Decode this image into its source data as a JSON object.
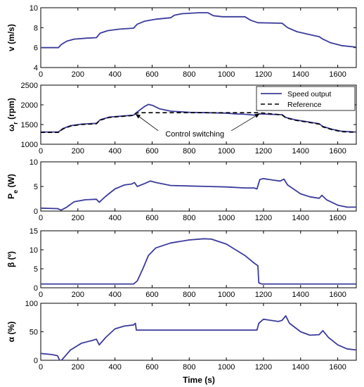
{
  "xlabel": "Time (s)",
  "colors": {
    "series": "#3b3b9c",
    "reference": "#000000",
    "axis": "#000000"
  },
  "chart_data": [
    {
      "type": "line",
      "ylabel": "v (m/s)",
      "xlim": [
        0,
        1700
      ],
      "ylim": [
        4,
        10
      ],
      "xticks": [
        0,
        200,
        400,
        600,
        800,
        1000,
        1200,
        1400,
        1600
      ],
      "yticks": [
        4,
        6,
        8,
        10
      ],
      "series": [
        {
          "values": [
            [
              0,
              6.0
            ],
            [
              95,
              6.0
            ],
            [
              110,
              6.3
            ],
            [
              140,
              6.65
            ],
            [
              180,
              6.85
            ],
            [
              250,
              6.95
            ],
            [
              300,
              7.0
            ],
            [
              320,
              7.45
            ],
            [
              360,
              7.7
            ],
            [
              420,
              7.85
            ],
            [
              500,
              7.95
            ],
            [
              520,
              8.35
            ],
            [
              560,
              8.65
            ],
            [
              620,
              8.85
            ],
            [
              700,
              9.0
            ],
            [
              720,
              9.25
            ],
            [
              760,
              9.4
            ],
            [
              850,
              9.5
            ],
            [
              900,
              9.5
            ],
            [
              930,
              9.2
            ],
            [
              980,
              9.1
            ],
            [
              1100,
              9.1
            ],
            [
              1130,
              8.75
            ],
            [
              1170,
              8.5
            ],
            [
              1300,
              8.45
            ],
            [
              1330,
              8.0
            ],
            [
              1380,
              7.6
            ],
            [
              1450,
              7.3
            ],
            [
              1500,
              7.1
            ],
            [
              1520,
              6.85
            ],
            [
              1560,
              6.5
            ],
            [
              1620,
              6.2
            ],
            [
              1700,
              6.05
            ]
          ]
        }
      ]
    },
    {
      "type": "line",
      "ylabel": "ω_r (rpm)",
      "xlim": [
        0,
        1700
      ],
      "ylim": [
        1000,
        2500
      ],
      "xticks": [
        0,
        200,
        400,
        600,
        800,
        1000,
        1200,
        1400,
        1600
      ],
      "yticks": [
        1000,
        1500,
        2000,
        2500
      ],
      "legend_position": "top-right",
      "series": [
        {
          "name": "Speed output",
          "values": [
            [
              0,
              1310
            ],
            [
              95,
              1310
            ],
            [
              120,
              1400
            ],
            [
              160,
              1470
            ],
            [
              220,
              1510
            ],
            [
              300,
              1530
            ],
            [
              320,
              1620
            ],
            [
              370,
              1690
            ],
            [
              450,
              1720
            ],
            [
              500,
              1740
            ],
            [
              520,
              1820
            ],
            [
              560,
              1960
            ],
            [
              580,
              2010
            ],
            [
              600,
              1990
            ],
            [
              640,
              1900
            ],
            [
              700,
              1840
            ],
            [
              800,
              1810
            ],
            [
              900,
              1800
            ],
            [
              1000,
              1790
            ],
            [
              1050,
              1770
            ],
            [
              1100,
              1760
            ],
            [
              1150,
              1740
            ],
            [
              1180,
              1770
            ],
            [
              1300,
              1750
            ],
            [
              1320,
              1680
            ],
            [
              1370,
              1620
            ],
            [
              1450,
              1560
            ],
            [
              1500,
              1520
            ],
            [
              1520,
              1450
            ],
            [
              1570,
              1380
            ],
            [
              1620,
              1330
            ],
            [
              1700,
              1310
            ]
          ]
        },
        {
          "name": "Reference",
          "style": "dashed",
          "values": [
            [
              0,
              1300
            ],
            [
              95,
              1300
            ],
            [
              120,
              1390
            ],
            [
              160,
              1460
            ],
            [
              220,
              1500
            ],
            [
              300,
              1520
            ],
            [
              320,
              1610
            ],
            [
              370,
              1680
            ],
            [
              450,
              1710
            ],
            [
              500,
              1730
            ],
            [
              515,
              1790
            ],
            [
              530,
              1800
            ],
            [
              1180,
              1800
            ],
            [
              1300,
              1745
            ],
            [
              1320,
              1670
            ],
            [
              1370,
              1610
            ],
            [
              1450,
              1550
            ],
            [
              1500,
              1510
            ],
            [
              1520,
              1440
            ],
            [
              1570,
              1370
            ],
            [
              1620,
              1320
            ],
            [
              1700,
              1300
            ]
          ]
        }
      ],
      "annotation": {
        "text": "Control switching",
        "arrows_to": [
          [
            510,
            1770
          ],
          [
            1180,
            1780
          ]
        ],
        "text_at": [
          830,
          1200
        ]
      }
    },
    {
      "type": "line",
      "ylabel": "P_e (W)",
      "xlim": [
        0,
        1700
      ],
      "ylim": [
        0,
        10
      ],
      "xticks": [
        0,
        200,
        400,
        600,
        800,
        1000,
        1200,
        1400,
        1600
      ],
      "yticks": [
        0,
        5,
        10
      ],
      "series": [
        {
          "values": [
            [
              0,
              0.6
            ],
            [
              90,
              0.5
            ],
            [
              110,
              0.2
            ],
            [
              140,
              0.8
            ],
            [
              180,
              1.9
            ],
            [
              240,
              2.3
            ],
            [
              300,
              2.4
            ],
            [
              315,
              1.8
            ],
            [
              350,
              3.0
            ],
            [
              400,
              4.5
            ],
            [
              450,
              5.3
            ],
            [
              490,
              5.5
            ],
            [
              505,
              5.8
            ],
            [
              520,
              5.0
            ],
            [
              560,
              5.6
            ],
            [
              590,
              6.1
            ],
            [
              620,
              5.8
            ],
            [
              700,
              5.2
            ],
            [
              800,
              5.1
            ],
            [
              900,
              5.0
            ],
            [
              1000,
              4.9
            ],
            [
              1100,
              4.7
            ],
            [
              1150,
              4.7
            ],
            [
              1165,
              4.5
            ],
            [
              1180,
              6.4
            ],
            [
              1200,
              6.6
            ],
            [
              1250,
              6.3
            ],
            [
              1290,
              6.1
            ],
            [
              1310,
              6.5
            ],
            [
              1330,
              5.3
            ],
            [
              1400,
              3.5
            ],
            [
              1450,
              2.9
            ],
            [
              1500,
              2.6
            ],
            [
              1515,
              3.2
            ],
            [
              1540,
              2.3
            ],
            [
              1600,
              1.2
            ],
            [
              1650,
              0.8
            ],
            [
              1700,
              0.8
            ]
          ]
        }
      ]
    },
    {
      "type": "line",
      "ylabel": "β (º)",
      "xlim": [
        0,
        1700
      ],
      "ylim": [
        0,
        15
      ],
      "xticks": [
        0,
        200,
        400,
        600,
        800,
        1000,
        1200,
        1400,
        1600
      ],
      "yticks": [
        0,
        5,
        10,
        15
      ],
      "series": [
        {
          "values": [
            [
              0,
              1.0
            ],
            [
              500,
              1.0
            ],
            [
              520,
              1.8
            ],
            [
              550,
              5.0
            ],
            [
              580,
              8.5
            ],
            [
              620,
              10.5
            ],
            [
              700,
              11.8
            ],
            [
              800,
              12.6
            ],
            [
              880,
              12.9
            ],
            [
              920,
              12.8
            ],
            [
              1000,
              11.5
            ],
            [
              1100,
              8.5
            ],
            [
              1150,
              6.5
            ],
            [
              1170,
              5.8
            ],
            [
              1175,
              1.3
            ],
            [
              1190,
              1.0
            ],
            [
              1700,
              1.0
            ]
          ]
        }
      ]
    },
    {
      "type": "line",
      "ylabel": "α (%)",
      "xlim": [
        0,
        1700
      ],
      "ylim": [
        0,
        100
      ],
      "xticks": [
        0,
        200,
        400,
        600,
        800,
        1000,
        1200,
        1400,
        1600
      ],
      "yticks": [
        0,
        50,
        100
      ],
      "series": [
        {
          "values": [
            [
              0,
              12
            ],
            [
              60,
              10
            ],
            [
              90,
              8
            ],
            [
              105,
              -2
            ],
            [
              120,
              3
            ],
            [
              160,
              18
            ],
            [
              220,
              30
            ],
            [
              280,
              35
            ],
            [
              300,
              37
            ],
            [
              315,
              27
            ],
            [
              350,
              40
            ],
            [
              400,
              55
            ],
            [
              450,
              60
            ],
            [
              500,
              62
            ],
            [
              510,
              65
            ],
            [
              515,
              53
            ],
            [
              1165,
              53
            ],
            [
              1175,
              65
            ],
            [
              1200,
              72
            ],
            [
              1280,
              68
            ],
            [
              1300,
              70
            ],
            [
              1320,
              78
            ],
            [
              1340,
              65
            ],
            [
              1400,
              50
            ],
            [
              1450,
              44
            ],
            [
              1500,
              45
            ],
            [
              1520,
              52
            ],
            [
              1550,
              40
            ],
            [
              1600,
              27
            ],
            [
              1650,
              20
            ],
            [
              1700,
              18
            ]
          ]
        }
      ]
    }
  ]
}
